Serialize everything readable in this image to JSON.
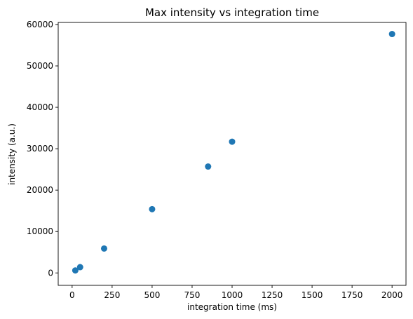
{
  "chart_data": {
    "type": "scatter",
    "title": "Max intensity vs integration time",
    "xlabel": "integration time (ms)",
    "ylabel": "intensity (a.u.)",
    "xlim": [
      -87,
      2087
    ],
    "ylim": [
      -3000,
      60500
    ],
    "xticks": [
      0,
      250,
      500,
      750,
      1000,
      1250,
      1500,
      1750,
      2000
    ],
    "xtick_labels": [
      "0",
      "250",
      "500",
      "750",
      "1000",
      "1250",
      "1500",
      "1750",
      "2000"
    ],
    "yticks": [
      0,
      10000,
      20000,
      30000,
      40000,
      50000,
      60000
    ],
    "ytick_labels": [
      "0",
      "10000",
      "20000",
      "30000",
      "40000",
      "50000",
      "60000"
    ],
    "grid": false,
    "series": [
      {
        "color": "#1f77b4",
        "marker": "circle",
        "points": [
          {
            "x": 20,
            "y": 600
          },
          {
            "x": 50,
            "y": 1400
          },
          {
            "x": 200,
            "y": 5900
          },
          {
            "x": 500,
            "y": 15400
          },
          {
            "x": 850,
            "y": 25700
          },
          {
            "x": 1000,
            "y": 31700
          },
          {
            "x": 2000,
            "y": 57700
          }
        ]
      }
    ]
  }
}
